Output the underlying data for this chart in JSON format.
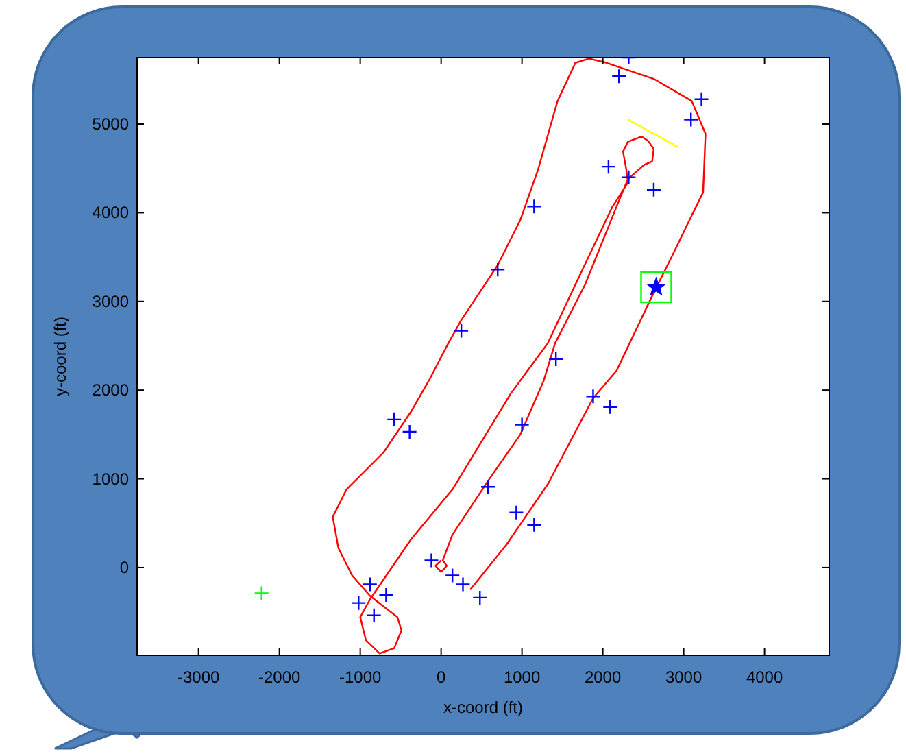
{
  "chart_data": {
    "type": "line",
    "xlabel": "x-coord (ft)",
    "ylabel": "y-coord (ft)",
    "xlim": [
      -3760,
      4800
    ],
    "ylim": [
      -990,
      5750
    ],
    "xticks": [
      -3000,
      -2000,
      -1000,
      0,
      1000,
      2000,
      3000,
      4000
    ],
    "yticks": [
      0,
      1000,
      2000,
      3000,
      4000,
      5000
    ],
    "series": [
      {
        "color": "#ff0000",
        "marker": "none",
        "x": [
          0,
          -70,
          0,
          70,
          20,
          140,
          590,
          980,
          1270,
          1410,
          1780,
          2170,
          2310,
          2510,
          2610,
          2630,
          2560,
          2480,
          2310,
          2250,
          2290,
          2310,
          2120,
          1660,
          1320,
          860,
          140,
          -370,
          -880,
          -1000,
          -930,
          -760,
          -580,
          -490,
          -540,
          -880,
          -1100,
          -1270,
          -1340,
          -1170,
          -710,
          -370,
          -150,
          90,
          250,
          700,
          980,
          1200,
          1440,
          1660,
          1830,
          2050,
          2630,
          3100,
          3270,
          3240,
          3100,
          2850,
          2630,
          2170,
          1880,
          1320,
          810,
          360
        ],
        "values": [
          80,
          20,
          -50,
          20,
          80,
          370,
          990,
          1500,
          2110,
          2530,
          3190,
          4070,
          4380,
          4540,
          4580,
          4720,
          4810,
          4860,
          4800,
          4690,
          4490,
          4340,
          4070,
          3190,
          2530,
          1960,
          880,
          320,
          -360,
          -560,
          -820,
          -970,
          -910,
          -710,
          -560,
          -320,
          -90,
          220,
          570,
          880,
          1300,
          1760,
          2110,
          2530,
          2790,
          3410,
          3920,
          4490,
          5260,
          5690,
          5740,
          5690,
          5510,
          5260,
          4890,
          4230,
          3970,
          3500,
          3100,
          2220,
          1910,
          940,
          260,
          -250
        ]
      },
      {
        "type": "scatter",
        "color": "#0000ff",
        "marker": "cross",
        "x": [
          2320,
          2200,
          3220,
          3090,
          2070,
          2320,
          2630,
          1150,
          700,
          250,
          1420,
          -580,
          -390,
          1880,
          2090,
          1000,
          580,
          930,
          1150,
          -120,
          140,
          270,
          480,
          -880,
          -680,
          -1020,
          -830
        ],
        "values": [
          5750,
          5540,
          5280,
          5050,
          4520,
          4400,
          4260,
          4070,
          3360,
          2670,
          2350,
          1670,
          1530,
          1930,
          1810,
          1610,
          910,
          620,
          480,
          80,
          -90,
          -190,
          -340,
          -190,
          -310,
          -400,
          -540
        ]
      },
      {
        "type": "scatter",
        "color": "#0000ff",
        "marker": "star",
        "x": [
          2660
        ],
        "values": [
          3160
        ]
      },
      {
        "type": "scatter",
        "color": "#00ff00",
        "marker": "square",
        "x": [
          2660
        ],
        "values": [
          3160
        ]
      },
      {
        "type": "scatter",
        "color": "#00ff00",
        "marker": "cross",
        "x": [
          -2220
        ],
        "values": [
          -290
        ]
      },
      {
        "type": "line",
        "color": "#ffff00",
        "marker": "none",
        "x": [
          2310,
          2930
        ],
        "values": [
          5050,
          4740
        ]
      }
    ]
  }
}
